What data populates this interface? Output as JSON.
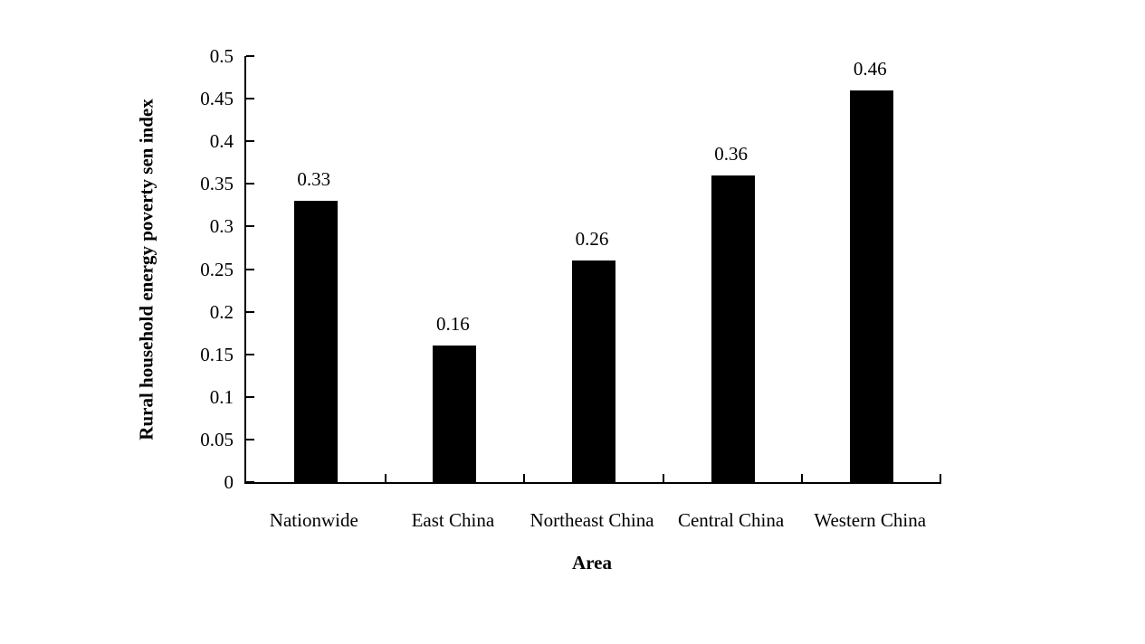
{
  "chart_data": {
    "type": "bar",
    "title": "",
    "categories": [
      "Nationwide",
      "East China",
      "Northeast China",
      "Central China",
      "Western China"
    ],
    "values": [
      0.33,
      0.16,
      0.26,
      0.36,
      0.46
    ],
    "value_labels": [
      "0.33",
      "0.16",
      "0.26",
      "0.36",
      "0.46"
    ],
    "xlabel": "Area",
    "ylabel": "Rural household energy poverty sen index",
    "ylim": [
      0,
      0.5
    ],
    "ytick_labels": [
      "0",
      "0.05",
      "0.1",
      "0.15",
      "0.2",
      "0.25",
      "0.3",
      "0.35",
      "0.4",
      "0.45",
      "0.5"
    ],
    "bar_color": "#000000",
    "background_color": "#ffffff",
    "grid": false,
    "legend": null
  }
}
